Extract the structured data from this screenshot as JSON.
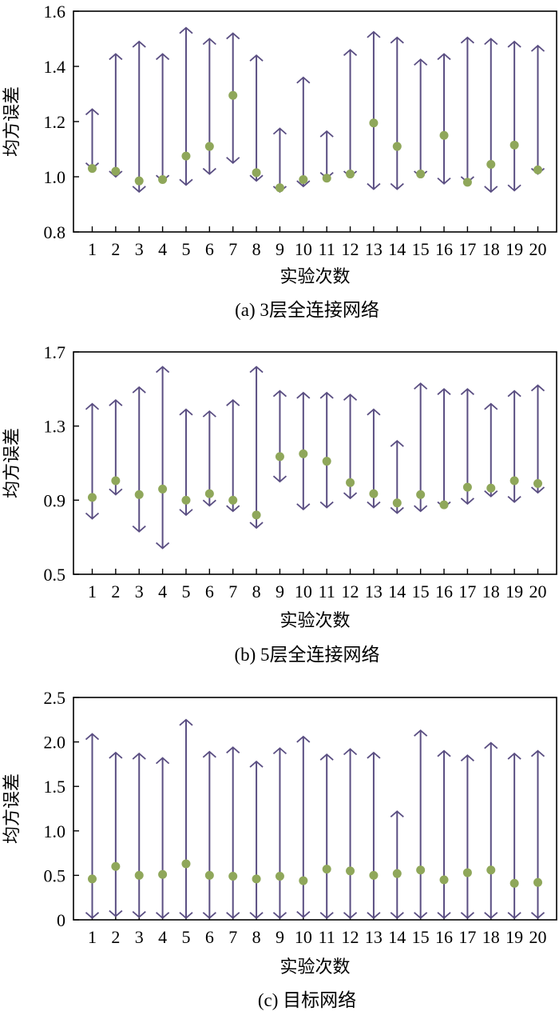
{
  "chart_data": [
    {
      "type": "scatter",
      "caption": "(a) 3层全连接网络",
      "xlabel": "实验次数",
      "ylabel": "均方误差",
      "ylim": [
        0.8,
        1.6
      ],
      "yticks": [
        0.8,
        1.0,
        1.2,
        1.4,
        1.6
      ],
      "ytick_labels": [
        "0.8",
        "1.0",
        "1.2",
        "1.4",
        "1.6"
      ],
      "x": [
        1,
        2,
        3,
        4,
        5,
        6,
        7,
        8,
        9,
        10,
        11,
        12,
        13,
        14,
        15,
        16,
        17,
        18,
        19,
        20
      ],
      "xtick_labels": [
        "1",
        "2",
        "3",
        "4",
        "5",
        "6",
        "7",
        "8",
        "9",
        "10",
        "11",
        "12",
        "13",
        "14",
        "15",
        "16",
        "17",
        "18",
        "19",
        "20"
      ],
      "mean": [
        1.03,
        1.02,
        0.985,
        0.99,
        1.075,
        1.11,
        1.295,
        1.015,
        0.96,
        0.99,
        0.995,
        1.01,
        1.195,
        1.11,
        1.01,
        1.15,
        0.98,
        1.045,
        1.115,
        1.025
      ],
      "upper": [
        1.245,
        1.445,
        1.49,
        1.445,
        1.54,
        1.5,
        1.52,
        1.44,
        1.175,
        1.36,
        1.165,
        1.46,
        1.525,
        1.505,
        1.425,
        1.445,
        1.505,
        1.5,
        1.49,
        1.475
      ],
      "lower": [
        1.03,
        1.0,
        0.945,
        0.985,
        0.97,
        1.01,
        1.05,
        0.985,
        0.945,
        0.965,
        0.995,
        1.0,
        0.955,
        0.955,
        1.0,
        0.975,
        0.98,
        0.945,
        0.95,
        1.01
      ],
      "colors": {
        "line": "#5a4e82",
        "marker": "#8fa75a"
      }
    },
    {
      "type": "scatter",
      "caption": "(b) 5层全连接网络",
      "xlabel": "实验次数",
      "ylabel": "均方误差",
      "ylim": [
        0.5,
        1.7
      ],
      "yticks": [
        0.5,
        0.9,
        1.3,
        1.7
      ],
      "ytick_labels": [
        "0.5",
        "0.9",
        "1.3",
        "1.7"
      ],
      "x": [
        1,
        2,
        3,
        4,
        5,
        6,
        7,
        8,
        9,
        10,
        11,
        12,
        13,
        14,
        15,
        16,
        17,
        18,
        19,
        20
      ],
      "xtick_labels": [
        "1",
        "2",
        "3",
        "4",
        "5",
        "6",
        "7",
        "8",
        "9",
        "10",
        "11",
        "12",
        "13",
        "14",
        "15",
        "16",
        "17",
        "18",
        "19",
        "20"
      ],
      "mean": [
        0.915,
        1.005,
        0.93,
        0.96,
        0.9,
        0.935,
        0.9,
        0.82,
        1.135,
        1.15,
        1.11,
        0.995,
        0.935,
        0.885,
        0.93,
        0.875,
        0.97,
        0.965,
        1.005,
        0.99
      ],
      "upper": [
        1.42,
        1.44,
        1.51,
        1.62,
        1.39,
        1.38,
        1.44,
        1.62,
        1.49,
        1.48,
        1.48,
        1.47,
        1.39,
        1.22,
        1.53,
        1.5,
        1.5,
        1.42,
        1.49,
        1.52
      ],
      "lower": [
        0.8,
        0.93,
        0.73,
        0.64,
        0.82,
        0.87,
        0.84,
        0.75,
        1.0,
        0.85,
        0.86,
        0.91,
        0.86,
        0.83,
        0.84,
        0.86,
        0.88,
        0.92,
        0.89,
        0.94
      ],
      "colors": {
        "line": "#5a4e82",
        "marker": "#8fa75a"
      }
    },
    {
      "type": "scatter",
      "caption": "(c) 目标网络",
      "xlabel": "实验次数",
      "ylabel": "均方误差",
      "ylim": [
        0,
        2.5
      ],
      "yticks": [
        0,
        0.5,
        1.0,
        1.5,
        2.0,
        2.5
      ],
      "ytick_labels": [
        "0",
        "0.5",
        "1.0",
        "1.5",
        "2.0",
        "2.5"
      ],
      "x": [
        1,
        2,
        3,
        4,
        5,
        6,
        7,
        8,
        9,
        10,
        11,
        12,
        13,
        14,
        15,
        16,
        17,
        18,
        19,
        20
      ],
      "xtick_labels": [
        "1",
        "2",
        "3",
        "4",
        "5",
        "6",
        "7",
        "8",
        "9",
        "10",
        "11",
        "12",
        "13",
        "14",
        "15",
        "16",
        "17",
        "18",
        "19",
        "20"
      ],
      "mean": [
        0.46,
        0.6,
        0.5,
        0.51,
        0.63,
        0.5,
        0.49,
        0.46,
        0.49,
        0.44,
        0.57,
        0.55,
        0.5,
        0.52,
        0.56,
        0.45,
        0.53,
        0.56,
        0.41,
        0.42
      ],
      "upper": [
        2.09,
        1.88,
        1.87,
        1.82,
        2.25,
        1.89,
        1.94,
        1.78,
        1.93,
        2.06,
        1.86,
        1.92,
        1.88,
        1.22,
        2.13,
        1.9,
        1.85,
        1.99,
        1.87,
        1.9
      ],
      "lower": [
        0.02,
        0.04,
        0.03,
        0.02,
        0.02,
        0.02,
        0.02,
        0.02,
        0.02,
        0.03,
        0.02,
        0.02,
        0.02,
        0.02,
        0.02,
        0.02,
        0.02,
        0.02,
        0.02,
        0.02
      ],
      "colors": {
        "line": "#5a4e82",
        "marker": "#8fa75a"
      }
    }
  ]
}
